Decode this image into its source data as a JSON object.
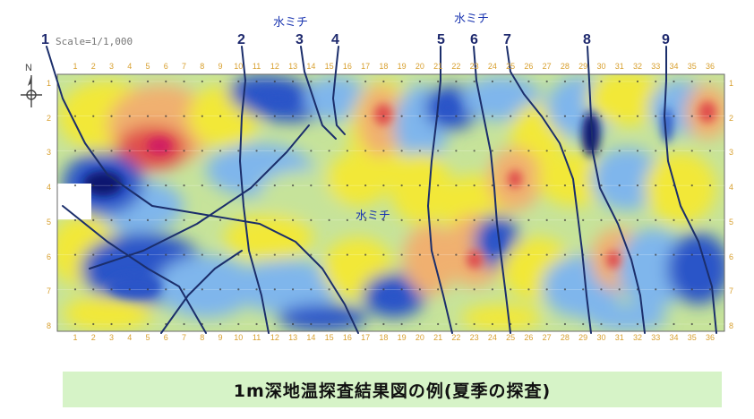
{
  "scale_label": "Scale=1/1,000",
  "north_label": "N",
  "caption": "1m深地温探査結果図の例(夏季の探査)",
  "water_label": "水ミチ",
  "line_numbers": [
    "1",
    "2",
    "3",
    "4",
    "5",
    "6",
    "7",
    "8",
    "9"
  ],
  "column_numbers": [
    "1",
    "2",
    "3",
    "4",
    "5",
    "6",
    "7",
    "8",
    "9",
    "10",
    "11",
    "12",
    "13",
    "14",
    "15",
    "16",
    "17",
    "18",
    "19",
    "20",
    "21",
    "22",
    "23",
    "24",
    "25",
    "26",
    "27",
    "28",
    "29",
    "30",
    "31",
    "32",
    "33",
    "34",
    "35",
    "36"
  ],
  "row_numbers": [
    "1",
    "2",
    "3",
    "4",
    "5",
    "6",
    "7",
    "8"
  ],
  "colors": {
    "caption_bg": "#d6f3c7",
    "cold_dark": "#101870",
    "cold": "#2a55c8",
    "cool": "#7fb6ec",
    "neutral": "#c6e39a",
    "warm": "#f2e838",
    "warmer": "#f0b070",
    "hot": "#e0504e",
    "hottest": "#d11a62",
    "line": "#1b2e6b",
    "label": "#1a35b0"
  }
}
